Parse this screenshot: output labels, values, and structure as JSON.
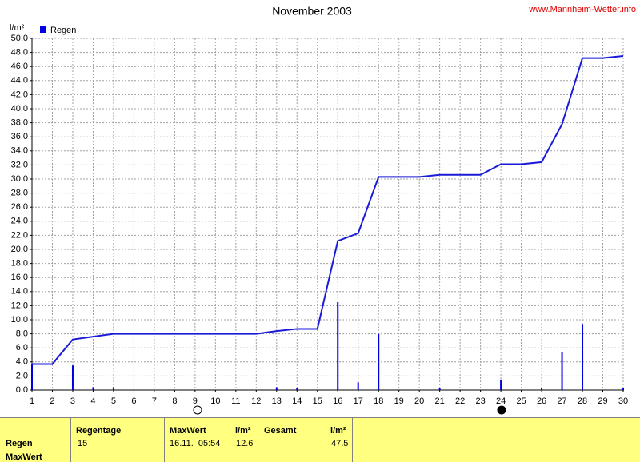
{
  "chart_data": {
    "type": "bar-line",
    "title": "November 2003",
    "source": "www.Mannheim-Wetter.info",
    "ylabel": "l/m²",
    "x": [
      1,
      2,
      3,
      4,
      5,
      6,
      7,
      8,
      9,
      10,
      11,
      12,
      13,
      14,
      15,
      16,
      17,
      18,
      19,
      20,
      21,
      22,
      23,
      24,
      25,
      26,
      27,
      28,
      29,
      30
    ],
    "series": [
      {
        "name": "Regen",
        "type": "bar",
        "color": "#0000e0",
        "values": [
          3.7,
          0,
          3.5,
          0.4,
          0.4,
          0,
          0,
          0,
          0,
          0,
          0,
          0,
          0.4,
          0.3,
          0,
          12.5,
          1.1,
          8.0,
          0,
          0,
          0.3,
          0,
          0,
          1.5,
          0,
          0.3,
          5.4,
          9.4,
          0,
          0.3
        ]
      },
      {
        "type": "line",
        "color": "#1a1ad8",
        "values": [
          3.7,
          3.7,
          7.2,
          7.6,
          8.0,
          8.0,
          8.0,
          8.0,
          8.0,
          8.0,
          8.0,
          8.0,
          8.4,
          8.7,
          8.7,
          21.2,
          22.3,
          30.3,
          30.3,
          30.3,
          30.6,
          30.6,
          30.6,
          32.1,
          32.1,
          32.4,
          37.8,
          47.2,
          47.2,
          47.5
        ]
      }
    ],
    "xlim": [
      1,
      30
    ],
    "xticks": [
      1,
      2,
      3,
      4,
      5,
      6,
      7,
      8,
      9,
      10,
      11,
      12,
      13,
      14,
      15,
      16,
      17,
      18,
      19,
      20,
      21,
      22,
      23,
      24,
      25,
      26,
      27,
      28,
      29,
      30
    ],
    "ylim": [
      0,
      50
    ],
    "yticks": [
      {
        "value": 0,
        "label": "0.0"
      },
      {
        "value": 2,
        "label": "2.0"
      },
      {
        "value": 4,
        "label": "4.0"
      },
      {
        "value": 6,
        "label": "6.0"
      },
      {
        "value": 8,
        "label": "8.0"
      },
      {
        "value": 10,
        "label": "10.0"
      },
      {
        "value": 12,
        "label": "12.0"
      },
      {
        "value": 14,
        "label": "14.0"
      },
      {
        "value": 16,
        "label": "16.0"
      },
      {
        "value": 18,
        "label": "18.0"
      },
      {
        "value": 20,
        "label": "20.0"
      },
      {
        "value": 22,
        "label": "22.0"
      },
      {
        "value": 24,
        "label": "24.0"
      },
      {
        "value": 26,
        "label": "26.0"
      },
      {
        "value": 28,
        "label": "28.0"
      },
      {
        "value": 30,
        "label": "30.0"
      },
      {
        "value": 32,
        "label": "32.0"
      },
      {
        "value": 34,
        "label": "34.0"
      },
      {
        "value": 36,
        "label": "36.0"
      },
      {
        "value": 38,
        "label": "38.0"
      },
      {
        "value": 40,
        "label": "40.0"
      },
      {
        "value": 42,
        "label": "42.0"
      },
      {
        "value": 44,
        "label": "44.0"
      },
      {
        "value": 46,
        "label": "46.0"
      },
      {
        "value": 48,
        "label": "48.0"
      },
      {
        "value": 50,
        "label": "50.0"
      }
    ],
    "grid": true
  },
  "summary": {
    "rows": [
      "Regen",
      "MaxWert"
    ],
    "headers": [
      "Regentage",
      "MaxWert",
      "l/m²",
      "Gesamt",
      "l/m²"
    ],
    "regentage": "15",
    "maxwert_time": "16.11.  05:54",
    "maxwert_value": "12.6",
    "gesamt": "47.5"
  }
}
